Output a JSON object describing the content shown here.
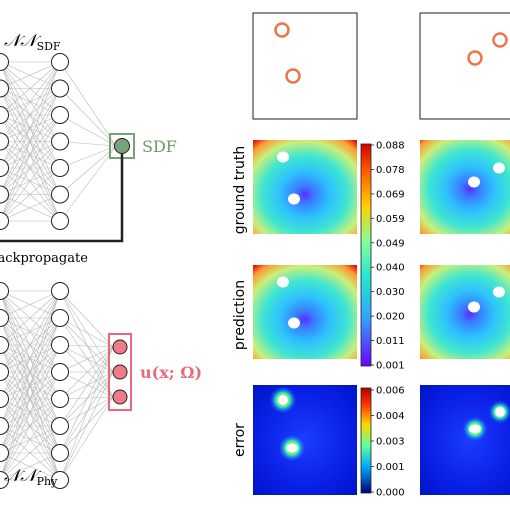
{
  "network_top": {
    "name_base": "𝒩𝒩",
    "name_sub": "SDF",
    "output_label": "SDF",
    "backprop_label": "Backpropagate"
  },
  "network_bottom": {
    "name_base": "𝒩𝒩",
    "name_sub": "Phy",
    "output_label": "u(x; Ω)"
  },
  "row_labels": {
    "ground_truth": "ground truth",
    "prediction": "prediction",
    "error": "error"
  },
  "colorbar_main": {
    "ticks": [
      "0.088",
      "0.078",
      "0.069",
      "0.059",
      "0.049",
      "0.040",
      "0.030",
      "0.020",
      "0.011",
      "0.001"
    ]
  },
  "colorbar_error": {
    "ticks": [
      "0.006",
      "0.004",
      "0.003",
      "0.001",
      "0.000"
    ]
  },
  "colors": {
    "sdf_green": "#6a9a6a",
    "phy_red": "#e66a7a",
    "ring_orange": "#e8774e",
    "node_fill_sdf": "#7aa27a",
    "node_fill_phy": "#f07c8a"
  }
}
